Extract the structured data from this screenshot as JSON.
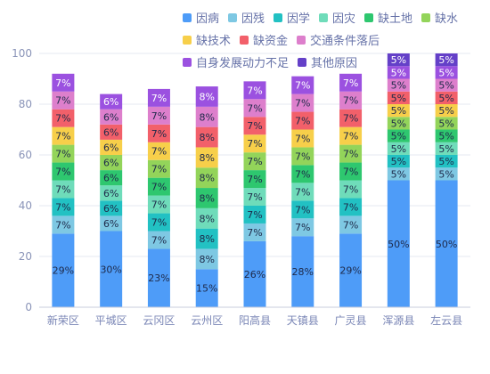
{
  "chart_data": {
    "type": "bar",
    "stacked": true,
    "categories": [
      "新荣区",
      "平城区",
      "云冈区",
      "云州区",
      "阳高县",
      "天镇县",
      "广灵县",
      "浑源县",
      "左云县"
    ],
    "ylim": [
      0,
      100
    ],
    "yticks": [
      0,
      20,
      40,
      60,
      80,
      100
    ],
    "grid": true,
    "legend_position": "top-right",
    "series": [
      {
        "name": "因病",
        "color": "#4e9cf8",
        "values": [
          29,
          30,
          23,
          15,
          26,
          28,
          29,
          50,
          50
        ]
      },
      {
        "name": "因残",
        "color": "#7ec8e3",
        "values": [
          7,
          6,
          7,
          8,
          7,
          7,
          7,
          5,
          5
        ]
      },
      {
        "name": "因学",
        "color": "#22c1c3",
        "values": [
          7,
          6,
          7,
          8,
          7,
          7,
          7,
          5,
          5
        ]
      },
      {
        "name": "因灾",
        "color": "#6fdcba",
        "values": [
          7,
          6,
          7,
          8,
          7,
          7,
          7,
          5,
          5
        ]
      },
      {
        "name": "缺土地",
        "color": "#2ec76f",
        "values": [
          7,
          6,
          7,
          8,
          7,
          7,
          7,
          5,
          5
        ]
      },
      {
        "name": "缺水",
        "color": "#93d45a",
        "values": [
          7,
          6,
          7,
          8,
          7,
          7,
          7,
          5,
          5
        ]
      },
      {
        "name": "缺技术",
        "color": "#f7cf4a",
        "values": [
          7,
          6,
          7,
          8,
          7,
          7,
          7,
          5,
          5
        ]
      },
      {
        "name": "缺资金",
        "color": "#f2606a",
        "values": [
          7,
          6,
          7,
          8,
          7,
          7,
          7,
          5,
          5
        ]
      },
      {
        "name": "交通条件落后",
        "color": "#dd7fcc",
        "values": [
          7,
          6,
          7,
          8,
          7,
          7,
          7,
          5,
          5
        ]
      },
      {
        "name": "自身发展动力不足",
        "color": "#9b51e0",
        "values": [
          7,
          6,
          7,
          8,
          7,
          7,
          7,
          5,
          5
        ]
      },
      {
        "name": "其他原因",
        "color": "#6440c8",
        "values": [
          0,
          0,
          0,
          0,
          0,
          0,
          0,
          5,
          5
        ]
      }
    ]
  }
}
